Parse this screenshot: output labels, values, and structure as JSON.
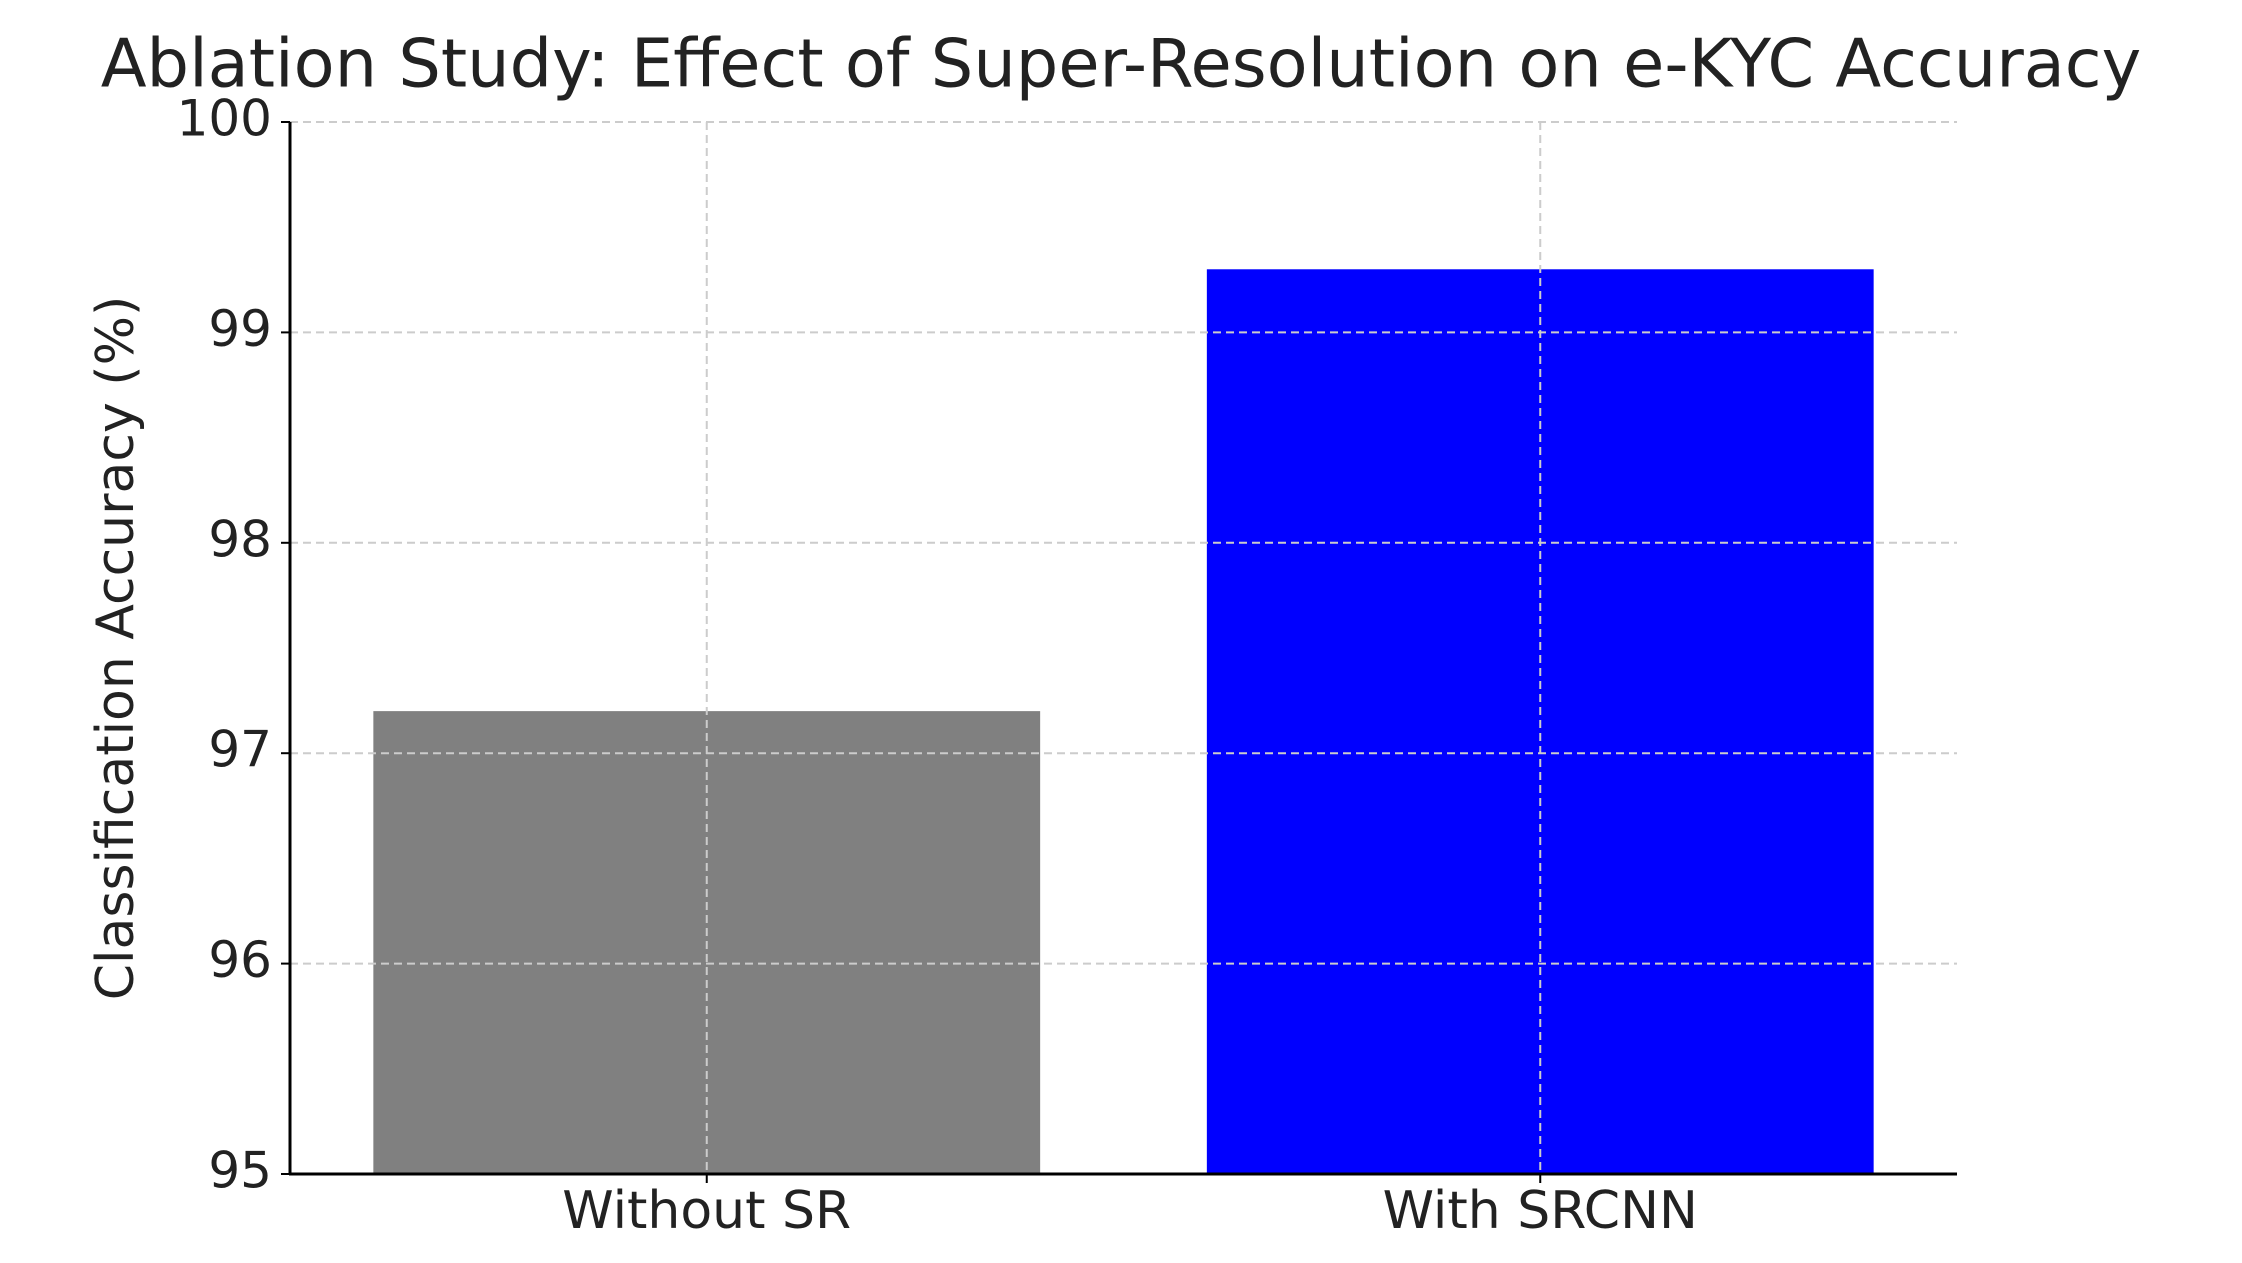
{
  "chart_data": {
    "type": "bar",
    "title": "Ablation Study: Effect of Super-Resolution on e-KYC Accuracy",
    "y_label": "Classification Accuracy (%)",
    "categories": [
      "Without SR",
      "With SRCNN"
    ],
    "values": [
      97.2,
      99.3
    ],
    "colors": [
      "#808080",
      "#0000ff"
    ],
    "ylim": [
      95,
      100
    ],
    "yticks": [
      95,
      96,
      97,
      98,
      99,
      100
    ],
    "grid": true
  }
}
